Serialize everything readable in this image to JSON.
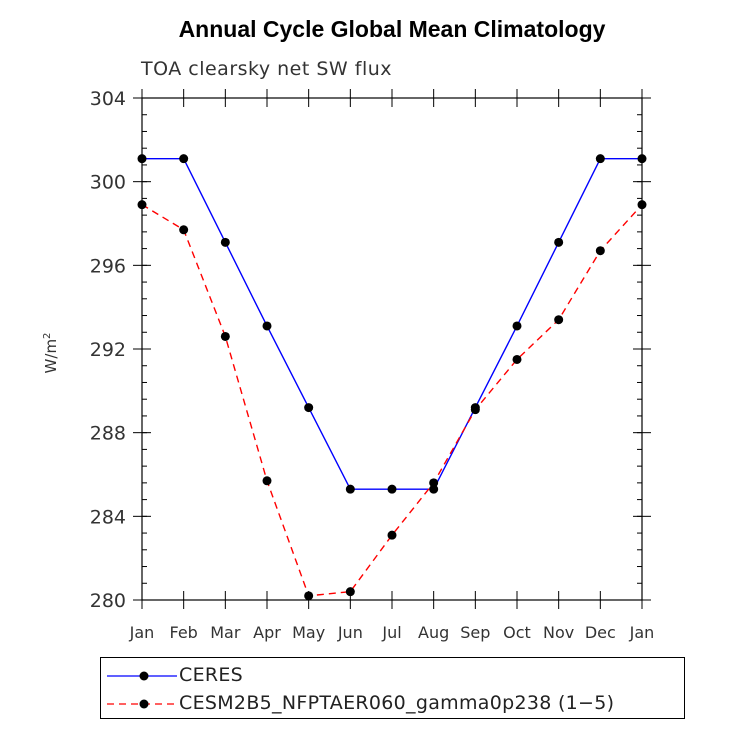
{
  "chart_data": {
    "type": "line",
    "title": "Annual Cycle Global Mean Climatology",
    "subtitle": "TOA clearsky net SW flux",
    "ylabel": "W/m",
    "ylabel_superscript": "2",
    "xlabel": "",
    "ylim": [
      280,
      304
    ],
    "yticks": [
      280,
      284,
      288,
      292,
      296,
      300,
      304
    ],
    "yminor_step": 0.8,
    "categories": [
      "Jan",
      "Feb",
      "Mar",
      "Apr",
      "May",
      "Jun",
      "Jul",
      "Aug",
      "Sep",
      "Oct",
      "Nov",
      "Dec",
      "Jan"
    ],
    "grid": false,
    "series": [
      {
        "name": "CERES",
        "color": "#0000ff",
        "style": "solid",
        "values": [
          301.1,
          301.1,
          297.1,
          293.1,
          289.2,
          285.3,
          285.3,
          285.3,
          289.2,
          293.1,
          297.1,
          301.1,
          301.1
        ]
      },
      {
        "name": "CESM2B5_NFPTAER060_gamma0p238 (1−5)",
        "color": "#ff0000",
        "style": "dashed",
        "values": [
          298.9,
          297.7,
          292.6,
          285.7,
          280.2,
          280.4,
          283.1,
          285.6,
          289.1,
          291.5,
          293.4,
          296.7,
          298.9
        ]
      }
    ],
    "legend_position": "bottom"
  }
}
